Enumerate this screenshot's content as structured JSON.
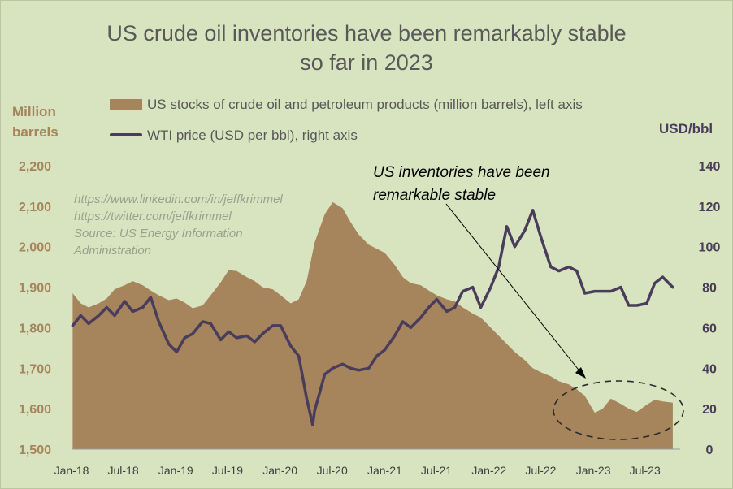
{
  "title_line1": "US crude oil inventories have been remarkably stable",
  "title_line2": "so far in 2023",
  "left_axis_title_line1": "Million",
  "left_axis_title_line2": "barrels",
  "right_axis_title": "USD/bbl",
  "source_lines": [
    "https://www.linkedin.com/in/jeffkrimmel",
    "https://twitter.com/jeffkrimmel",
    "Source: US Energy Information",
    "Administration"
  ],
  "annotation_line1": "US inventories have been",
  "annotation_line2": "remarkable stable",
  "colors": {
    "stocks": "#a6845c",
    "wti": "#4a3d5c",
    "background": "#d8e4bf"
  },
  "chart_data": {
    "type": "area+line",
    "title": "US crude oil inventories have been remarkably stable so far in 2023",
    "legend_placement": "top-left",
    "grid": false,
    "x_ticks": [
      "Jan-18",
      "Jul-18",
      "Jan-19",
      "Jul-19",
      "Jan-20",
      "Jul-20",
      "Jan-21",
      "Jul-21",
      "Jan-22",
      "Jul-22",
      "Jan-23",
      "Jul-23"
    ],
    "x_range": [
      "2018-01",
      "2023-10"
    ],
    "left_axis": {
      "label": "Million barrels",
      "ylim": [
        1500,
        2200
      ],
      "ticks": [
        "1,500",
        "1,600",
        "1,700",
        "1,800",
        "1,900",
        "2,000",
        "2,100",
        "2,200"
      ]
    },
    "right_axis": {
      "label": "USD/bbl",
      "ylim": [
        0,
        140
      ],
      "ticks": [
        "0",
        "20",
        "40",
        "60",
        "80",
        "100",
        "120",
        "140"
      ]
    },
    "series": [
      {
        "name": "US stocks of crude oil and petroleum products  (million barrels), left axis",
        "type": "area",
        "axis": "left",
        "points": [
          [
            "2018-01-05",
            1885
          ],
          [
            "2018-02-02",
            1860
          ],
          [
            "2018-03-02",
            1850
          ],
          [
            "2018-04-06",
            1860
          ],
          [
            "2018-05-04",
            1872
          ],
          [
            "2018-06-01",
            1895
          ],
          [
            "2018-07-06",
            1905
          ],
          [
            "2018-08-03",
            1915
          ],
          [
            "2018-09-07",
            1905
          ],
          [
            "2018-10-05",
            1892
          ],
          [
            "2018-11-02",
            1880
          ],
          [
            "2018-12-07",
            1868
          ],
          [
            "2019-01-04",
            1872
          ],
          [
            "2019-02-01",
            1862
          ],
          [
            "2019-03-01",
            1848
          ],
          [
            "2019-04-05",
            1855
          ],
          [
            "2019-05-03",
            1880
          ],
          [
            "2019-06-07",
            1912
          ],
          [
            "2019-07-05",
            1942
          ],
          [
            "2019-08-02",
            1940
          ],
          [
            "2019-09-06",
            1925
          ],
          [
            "2019-10-04",
            1915
          ],
          [
            "2019-11-01",
            1900
          ],
          [
            "2019-12-06",
            1895
          ],
          [
            "2020-01-03",
            1880
          ],
          [
            "2020-02-07",
            1860
          ],
          [
            "2020-03-06",
            1870
          ],
          [
            "2020-04-03",
            1915
          ],
          [
            "2020-05-01",
            2010
          ],
          [
            "2020-06-05",
            2080
          ],
          [
            "2020-07-03",
            2110
          ],
          [
            "2020-08-07",
            2095
          ],
          [
            "2020-09-04",
            2060
          ],
          [
            "2020-10-02",
            2030
          ],
          [
            "2020-11-06",
            2005
          ],
          [
            "2020-12-04",
            1995
          ],
          [
            "2021-01-01",
            1985
          ],
          [
            "2021-02-05",
            1955
          ],
          [
            "2021-03-05",
            1925
          ],
          [
            "2021-04-02",
            1910
          ],
          [
            "2021-05-07",
            1905
          ],
          [
            "2021-06-04",
            1892
          ],
          [
            "2021-07-02",
            1880
          ],
          [
            "2021-08-06",
            1870
          ],
          [
            "2021-09-03",
            1865
          ],
          [
            "2021-10-01",
            1850
          ],
          [
            "2021-11-05",
            1835
          ],
          [
            "2021-12-03",
            1825
          ],
          [
            "2022-01-07",
            1800
          ],
          [
            "2022-02-04",
            1780
          ],
          [
            "2022-03-04",
            1760
          ],
          [
            "2022-04-01",
            1740
          ],
          [
            "2022-05-06",
            1720
          ],
          [
            "2022-06-03",
            1700
          ],
          [
            "2022-07-01",
            1690
          ],
          [
            "2022-08-05",
            1680
          ],
          [
            "2022-09-02",
            1668
          ],
          [
            "2022-10-07",
            1660
          ],
          [
            "2022-11-04",
            1648
          ],
          [
            "2022-12-02",
            1632
          ],
          [
            "2023-01-06",
            1590
          ],
          [
            "2023-02-03",
            1600
          ],
          [
            "2023-03-03",
            1625
          ],
          [
            "2023-04-07",
            1612
          ],
          [
            "2023-05-05",
            1600
          ],
          [
            "2023-06-02",
            1592
          ],
          [
            "2023-07-07",
            1610
          ],
          [
            "2023-08-04",
            1622
          ],
          [
            "2023-09-01",
            1618
          ],
          [
            "2023-10-06",
            1615
          ]
        ]
      },
      {
        "name": "WTI price (USD per bbl), right axis",
        "type": "line",
        "axis": "right",
        "points": [
          [
            "2018-01-05",
            61
          ],
          [
            "2018-02-02",
            66
          ],
          [
            "2018-03-02",
            62
          ],
          [
            "2018-04-06",
            66
          ],
          [
            "2018-05-04",
            70
          ],
          [
            "2018-06-01",
            66
          ],
          [
            "2018-07-06",
            73
          ],
          [
            "2018-08-03",
            68
          ],
          [
            "2018-09-07",
            70
          ],
          [
            "2018-10-05",
            75
          ],
          [
            "2018-11-02",
            63
          ],
          [
            "2018-12-07",
            52
          ],
          [
            "2019-01-04",
            48
          ],
          [
            "2019-02-01",
            55
          ],
          [
            "2019-03-01",
            57
          ],
          [
            "2019-04-05",
            63
          ],
          [
            "2019-05-03",
            62
          ],
          [
            "2019-06-07",
            54
          ],
          [
            "2019-07-05",
            58
          ],
          [
            "2019-08-02",
            55
          ],
          [
            "2019-09-06",
            56
          ],
          [
            "2019-10-04",
            53
          ],
          [
            "2019-11-01",
            57
          ],
          [
            "2019-12-06",
            61
          ],
          [
            "2020-01-03",
            61
          ],
          [
            "2020-02-07",
            51
          ],
          [
            "2020-03-06",
            46
          ],
          [
            "2020-04-03",
            25
          ],
          [
            "2020-04-24",
            12
          ],
          [
            "2020-05-01",
            19
          ],
          [
            "2020-06-05",
            37
          ],
          [
            "2020-07-03",
            40
          ],
          [
            "2020-08-07",
            42
          ],
          [
            "2020-09-04",
            40
          ],
          [
            "2020-10-02",
            39
          ],
          [
            "2020-11-06",
            40
          ],
          [
            "2020-12-04",
            46
          ],
          [
            "2021-01-01",
            49
          ],
          [
            "2021-02-05",
            56
          ],
          [
            "2021-03-05",
            63
          ],
          [
            "2021-04-02",
            60
          ],
          [
            "2021-05-07",
            65
          ],
          [
            "2021-06-04",
            70
          ],
          [
            "2021-07-02",
            74
          ],
          [
            "2021-08-06",
            68
          ],
          [
            "2021-09-03",
            70
          ],
          [
            "2021-10-01",
            78
          ],
          [
            "2021-11-05",
            80
          ],
          [
            "2021-12-03",
            70
          ],
          [
            "2022-01-07",
            80
          ],
          [
            "2022-02-04",
            90
          ],
          [
            "2022-03-04",
            110
          ],
          [
            "2022-04-01",
            100
          ],
          [
            "2022-05-06",
            108
          ],
          [
            "2022-06-03",
            118
          ],
          [
            "2022-07-01",
            105
          ],
          [
            "2022-08-05",
            90
          ],
          [
            "2022-09-02",
            88
          ],
          [
            "2022-10-07",
            90
          ],
          [
            "2022-11-04",
            88
          ],
          [
            "2022-12-02",
            77
          ],
          [
            "2023-01-06",
            78
          ],
          [
            "2023-02-03",
            78
          ],
          [
            "2023-03-03",
            78
          ],
          [
            "2023-04-07",
            80
          ],
          [
            "2023-05-05",
            71
          ],
          [
            "2023-06-02",
            71
          ],
          [
            "2023-07-07",
            72
          ],
          [
            "2023-08-04",
            82
          ],
          [
            "2023-09-01",
            85
          ],
          [
            "2023-10-06",
            80
          ]
        ]
      }
    ]
  }
}
